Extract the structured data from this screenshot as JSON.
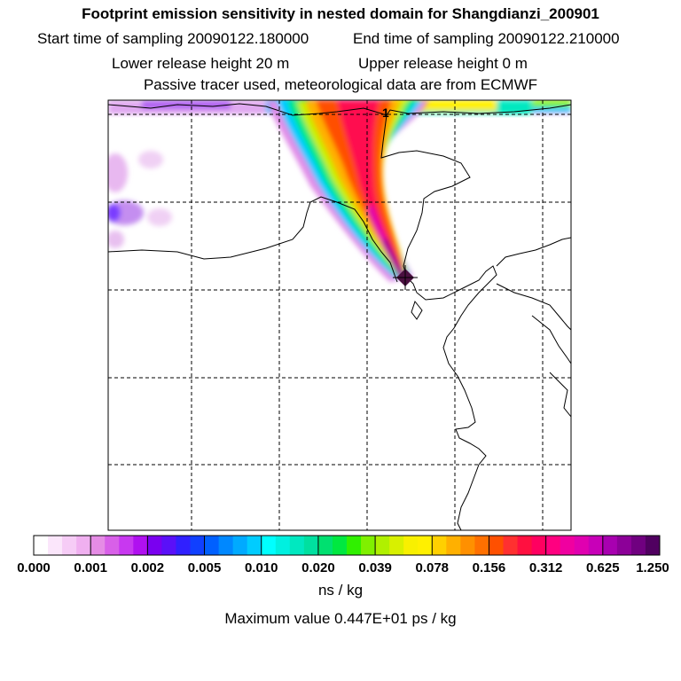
{
  "header": {
    "title": "Footprint emission sensitivity in nested domain for Shangdianzi_200901",
    "start_label": "Start time of sampling 20090122.180000",
    "end_label": "End time of sampling 20090122.210000",
    "lower_release": "Lower release height   20 m",
    "upper_release": "Upper release height    0 m",
    "tracer_note": "Passive tracer used, meteorological data are from ECMWF"
  },
  "map": {
    "receptor_marker": "diamond-marker",
    "label_1": "1"
  },
  "colorbar": {
    "tick_labels": [
      "0.000",
      "0.001",
      "0.002",
      "0.005",
      "0.010",
      "0.020",
      "0.039",
      "0.078",
      "0.156",
      "0.312",
      "0.625",
      "1.250"
    ],
    "colors": [
      [
        "#ffffff",
        "#fbe6fb",
        "#f6ccf6",
        "#f0b0f0"
      ],
      [
        "#e58ce5",
        "#d860e8",
        "#c838f0",
        "#b010f0"
      ],
      [
        "#7a00f0",
        "#5a10f8",
        "#3020ff",
        "#1040ff"
      ],
      [
        "#0060ff",
        "#0088ff",
        "#00aaff",
        "#00ccff"
      ],
      [
        "#00ffff",
        "#00f0e0",
        "#00e8c0",
        "#00e0a0"
      ],
      [
        "#00e070",
        "#00e840",
        "#30f000",
        "#80f000"
      ],
      [
        "#b0f000",
        "#d8f000",
        "#f8f000",
        "#fff000"
      ],
      [
        "#ffd000",
        "#ffb000",
        "#ff9000",
        "#ff7000"
      ],
      [
        "#ff5000",
        "#ff3030",
        "#ff1040",
        "#ff0060"
      ],
      [
        "#ff0080",
        "#f000a0",
        "#e000b0",
        "#c800b8"
      ],
      [
        "#a800b0",
        "#8c0098",
        "#700080",
        "#500060"
      ]
    ],
    "units": "ns / kg",
    "max_value": "Maximum value  0.447E+01 ps / kg"
  }
}
